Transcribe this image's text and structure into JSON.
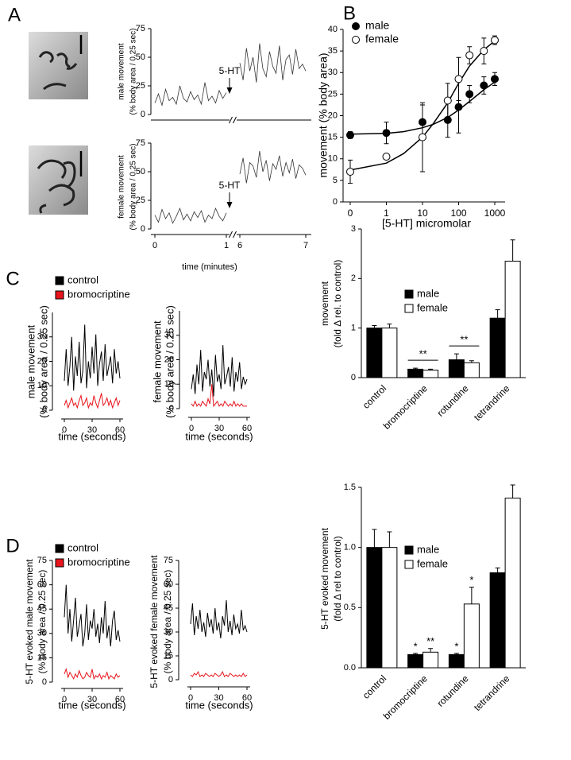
{
  "chart_data": [
    {
      "type": "line",
      "panel_label": "A",
      "ylabel": [
        "male movement",
        "(% body area / 0.25 sec)"
      ],
      "xlim": [
        0,
        7
      ],
      "xbreak": [
        1,
        6
      ],
      "ylim": [
        0,
        75
      ],
      "yticks": [
        0,
        25,
        50,
        75
      ],
      "color": "#333333",
      "annotation": {
        "text": "5-HT",
        "x": 1
      },
      "segments": [
        {
          "x": [
            0,
            0.05,
            0.1,
            0.15,
            0.2,
            0.25,
            0.3,
            0.35,
            0.4,
            0.45,
            0.5,
            0.55,
            0.6,
            0.65,
            0.7,
            0.75,
            0.8,
            0.85,
            0.9,
            0.95,
            1
          ],
          "values": [
            10,
            18,
            8,
            22,
            12,
            15,
            9,
            25,
            14,
            11,
            20,
            13,
            17,
            9,
            28,
            12,
            16,
            10,
            21,
            14,
            19
          ]
        },
        {
          "x": [
            6,
            6.05,
            6.1,
            6.15,
            6.2,
            6.25,
            6.3,
            6.35,
            6.4,
            6.45,
            6.5,
            6.55,
            6.6,
            6.65,
            6.7,
            6.75,
            6.8,
            6.85,
            6.9,
            6.95,
            7
          ],
          "values": [
            45,
            30,
            58,
            38,
            50,
            28,
            62,
            40,
            33,
            55,
            42,
            36,
            60,
            30,
            48,
            52,
            35,
            57,
            40,
            44,
            38
          ]
        }
      ]
    },
    {
      "type": "line",
      "ylabel": [
        "female movement",
        "(% body area / 0.25 sec)"
      ],
      "xlabel": "time (minutes)",
      "xlim": [
        0,
        7
      ],
      "xbreak": [
        1,
        6
      ],
      "xticks": [
        0,
        1,
        6,
        7
      ],
      "ylim": [
        0,
        75
      ],
      "yticks": [
        0,
        25,
        50,
        75
      ],
      "color": "#333333",
      "annotation": {
        "text": "5-HT",
        "x": 1
      },
      "segments": [
        {
          "x": [
            0,
            0.05,
            0.1,
            0.15,
            0.2,
            0.25,
            0.3,
            0.35,
            0.4,
            0.45,
            0.5,
            0.55,
            0.6,
            0.65,
            0.7,
            0.75,
            0.8,
            0.85,
            0.9,
            0.95,
            1
          ],
          "values": [
            12,
            6,
            17,
            9,
            14,
            5,
            11,
            18,
            8,
            13,
            7,
            15,
            10,
            16,
            6,
            12,
            9,
            18,
            11,
            7,
            14
          ]
        },
        {
          "x": [
            6,
            6.05,
            6.1,
            6.15,
            6.2,
            6.25,
            6.3,
            6.35,
            6.4,
            6.45,
            6.5,
            6.55,
            6.6,
            6.65,
            6.7,
            6.75,
            6.8,
            6.85,
            6.9,
            6.95,
            7
          ],
          "values": [
            48,
            62,
            40,
            58,
            55,
            45,
            68,
            50,
            60,
            42,
            57,
            52,
            64,
            46,
            58,
            49,
            61,
            44,
            56,
            53,
            47
          ]
        }
      ]
    },
    {
      "type": "scatter",
      "panel_label": "B",
      "xlabel": "[5-HT] micromolar",
      "ylabel": [
        "movement (% body area)"
      ],
      "xscale": "log",
      "xlim": [
        0,
        1000
      ],
      "xticks": [
        0,
        1,
        10,
        100,
        1000
      ],
      "ylim": [
        0,
        40
      ],
      "yticks": [
        0,
        5,
        10,
        15,
        20,
        25,
        30,
        35,
        40
      ],
      "legend": "upper left",
      "series": [
        {
          "name": "male",
          "color": "#000000",
          "marker_fill": "#000000",
          "x": [
            0,
            1,
            10,
            50,
            100,
            200,
            500,
            1000
          ],
          "values": [
            15.5,
            16,
            18.5,
            19,
            22,
            25,
            27,
            28.5
          ],
          "errors": [
            0.8,
            2.5,
            4,
            4,
            6,
            2,
            2,
            1.5
          ],
          "fit": {
            "x": [
              0,
              1,
              3,
              10,
              20,
              50,
              100,
              200,
              500,
              1000
            ],
            "values": [
              15.7,
              15.9,
              16.3,
              17.2,
              18.0,
              19.6,
              21.3,
              23.3,
              26.0,
              27.8
            ]
          }
        },
        {
          "name": "female",
          "color": "#000000",
          "marker_fill": "#ffffff",
          "x": [
            0,
            1,
            10,
            50,
            100,
            200,
            500,
            1000
          ],
          "values": [
            7,
            10.5,
            15,
            23.5,
            28.5,
            34,
            35,
            37.5
          ],
          "errors": [
            2.7,
            0.5,
            8,
            4,
            5,
            2,
            3,
            1
          ],
          "fit": {
            "x": [
              0,
              1,
              3,
              10,
              20,
              50,
              100,
              200,
              500,
              1000
            ],
            "values": [
              7.4,
              9.0,
              11.2,
              15.0,
              18.2,
              23.0,
              27.5,
              31.5,
              35.3,
              37.3
            ]
          }
        }
      ]
    },
    {
      "type": "line",
      "panel_label": "C",
      "ylabel": [
        "male movement",
        "(% body area / 0.25 sec)"
      ],
      "xlabel": "time (seconds)",
      "legend": "upper left",
      "xlim": [
        0,
        60
      ],
      "xticks": [
        0,
        30,
        60
      ],
      "ylim": [
        0,
        40
      ],
      "yticks": [
        0,
        10,
        20,
        30
      ],
      "x": [
        0,
        2,
        4,
        6,
        8,
        10,
        12,
        14,
        16,
        18,
        20,
        22,
        24,
        26,
        28,
        30,
        32,
        34,
        36,
        38,
        40,
        42,
        44,
        46,
        48,
        50,
        52,
        54,
        56,
        58,
        60
      ],
      "series": [
        {
          "name": "control",
          "color": "#000000",
          "values": [
            12,
            25,
            10,
            18,
            30,
            8,
            22,
            14,
            28,
            11,
            16,
            35,
            9,
            20,
            13,
            26,
            15,
            31,
            10,
            19,
            24,
            12,
            27,
            14,
            18,
            22,
            11,
            25,
            15,
            20,
            13
          ]
        },
        {
          "name": "bromocriptine",
          "color": "#e8141b",
          "values": [
            2,
            4,
            1,
            3,
            5,
            2,
            3,
            1,
            4,
            6,
            2,
            3,
            5,
            1,
            3,
            2,
            6,
            3,
            1,
            4,
            7,
            2,
            3,
            5,
            2,
            4,
            1,
            3,
            5,
            2,
            4
          ]
        }
      ]
    },
    {
      "type": "line",
      "ylabel": [
        "female movement",
        "(% body area / 0.25 sec)"
      ],
      "xlabel": "time (seconds)",
      "xlim": [
        0,
        60
      ],
      "xticks": [
        0,
        30,
        60
      ],
      "ylim": [
        0,
        40
      ],
      "yticks": [
        0,
        10,
        20,
        30
      ],
      "x": [
        0,
        2,
        4,
        6,
        8,
        10,
        12,
        14,
        16,
        18,
        20,
        22,
        24,
        26,
        28,
        30,
        32,
        34,
        36,
        38,
        40,
        42,
        44,
        46,
        48,
        50,
        52,
        54,
        56,
        58,
        60
      ],
      "series": [
        {
          "color": "#000000",
          "values": [
            8,
            14,
            6,
            18,
            10,
            24,
            7,
            15,
            12,
            20,
            9,
            16,
            5,
            22,
            11,
            14,
            8,
            26,
            10,
            13,
            17,
            9,
            21,
            7,
            15,
            11,
            19,
            8,
            13,
            10,
            12
          ]
        },
        {
          "color": "#e8141b",
          "values": [
            2,
            1,
            3,
            1,
            2,
            1,
            3,
            2,
            1,
            4,
            2,
            10,
            1,
            2,
            3,
            1,
            2,
            1,
            3,
            2,
            1,
            2,
            1,
            3,
            1,
            2,
            1,
            2,
            1,
            1,
            1
          ]
        }
      ]
    },
    {
      "type": "bar",
      "ylabel": [
        "movement",
        "(fold Δ rel. to control)"
      ],
      "legend": "upper left",
      "categories": [
        "control",
        "bromocriptine",
        "rotundine",
        "tetrandrine"
      ],
      "ylim": [
        0,
        3
      ],
      "yticks": [
        0,
        1,
        2,
        3
      ],
      "significance": [
        null,
        "**",
        "**",
        null
      ],
      "series": [
        {
          "name": "male",
          "color": "#000000",
          "values": [
            1.0,
            0.17,
            0.36,
            1.2
          ],
          "errors": [
            0.05,
            0.02,
            0.12,
            0.17
          ]
        },
        {
          "name": "female",
          "color": "#ffffff",
          "values": [
            1.0,
            0.15,
            0.3,
            2.35
          ],
          "errors": [
            0.08,
            0.02,
            0.04,
            0.43
          ]
        }
      ]
    },
    {
      "type": "line",
      "panel_label": "D",
      "ylabel": [
        "5-HT evoked male movement",
        "(% body area / 0.25 sec)"
      ],
      "xlabel": "time (seconds)",
      "legend": "upper left",
      "xlim": [
        0,
        60
      ],
      "xticks": [
        0,
        30,
        60
      ],
      "ylim": [
        0,
        75
      ],
      "yticks": [
        0,
        15,
        30,
        45,
        60,
        75
      ],
      "x": [
        0,
        2,
        4,
        6,
        8,
        10,
        12,
        14,
        16,
        18,
        20,
        22,
        24,
        26,
        28,
        30,
        32,
        34,
        36,
        38,
        40,
        42,
        44,
        46,
        48,
        50,
        52,
        54,
        56,
        58,
        60
      ],
      "series": [
        {
          "name": "control",
          "color": "#000000",
          "values": [
            40,
            60,
            30,
            45,
            25,
            38,
            52,
            28,
            35,
            42,
            22,
            30,
            48,
            26,
            38,
            33,
            45,
            28,
            36,
            24,
            40,
            30,
            50,
            27,
            35,
            22,
            38,
            44,
            26,
            32,
            25
          ]
        },
        {
          "name": "bromocriptine",
          "color": "#e8141b",
          "values": [
            5,
            8,
            3,
            6,
            4,
            2,
            5,
            3,
            7,
            4,
            2,
            3,
            6,
            4,
            3,
            8,
            2,
            4,
            3,
            5,
            2,
            4,
            3,
            6,
            2,
            4,
            3,
            2,
            5,
            3,
            4
          ]
        }
      ]
    },
    {
      "type": "line",
      "ylabel": [
        "5-HT evoked female movement",
        "(% body area / 0.25 sec)"
      ],
      "xlabel": "time (seconds)",
      "xlim": [
        0,
        60
      ],
      "xticks": [
        0,
        30,
        60
      ],
      "ylim": [
        0,
        75
      ],
      "yticks": [
        0,
        15,
        30,
        45,
        60,
        75
      ],
      "x": [
        0,
        2,
        4,
        6,
        8,
        10,
        12,
        14,
        16,
        18,
        20,
        22,
        24,
        26,
        28,
        30,
        32,
        34,
        36,
        38,
        40,
        42,
        44,
        46,
        48,
        50,
        52,
        54,
        56,
        58,
        60
      ],
      "series": [
        {
          "color": "#000000",
          "values": [
            35,
            48,
            28,
            40,
            32,
            44,
            30,
            36,
            27,
            42,
            33,
            38,
            29,
            45,
            31,
            36,
            26,
            40,
            34,
            50,
            30,
            37,
            28,
            41,
            32,
            35,
            29,
            44,
            31,
            34,
            30
          ]
        },
        {
          "color": "#e8141b",
          "values": [
            3,
            2,
            4,
            3,
            5,
            2,
            3,
            2,
            4,
            3,
            2,
            3,
            2,
            4,
            3,
            2,
            3,
            5,
            2,
            3,
            2,
            4,
            3,
            2,
            3,
            2,
            3,
            2,
            4,
            2,
            3
          ]
        }
      ]
    },
    {
      "type": "bar",
      "ylabel": [
        "5-HT evoked movement",
        "(fold Δ rel to control)"
      ],
      "legend": "upper left",
      "categories": [
        "control",
        "bromocriptine",
        "rotundine",
        "tetrandrine"
      ],
      "ylim": [
        0,
        1.5
      ],
      "yticks": [
        {
          "value": 0,
          "label": "0.0"
        },
        {
          "value": 0.5,
          "label": "0.5"
        },
        {
          "value": 1,
          "label": "1.0"
        },
        {
          "value": 1.5,
          "label": "1.5"
        }
      ],
      "series": [
        {
          "name": "male",
          "color": "#000000",
          "values": [
            1.0,
            0.11,
            0.11,
            0.79
          ],
          "errors": [
            0.15,
            0.01,
            0.01,
            0.04
          ],
          "significance": [
            null,
            "*",
            "*",
            null
          ]
        },
        {
          "name": "female",
          "color": "#ffffff",
          "values": [
            1.0,
            0.13,
            0.53,
            1.41
          ],
          "errors": [
            0.13,
            0.03,
            0.14,
            0.11
          ],
          "significance": [
            null,
            "**",
            "*",
            null
          ]
        }
      ]
    }
  ]
}
